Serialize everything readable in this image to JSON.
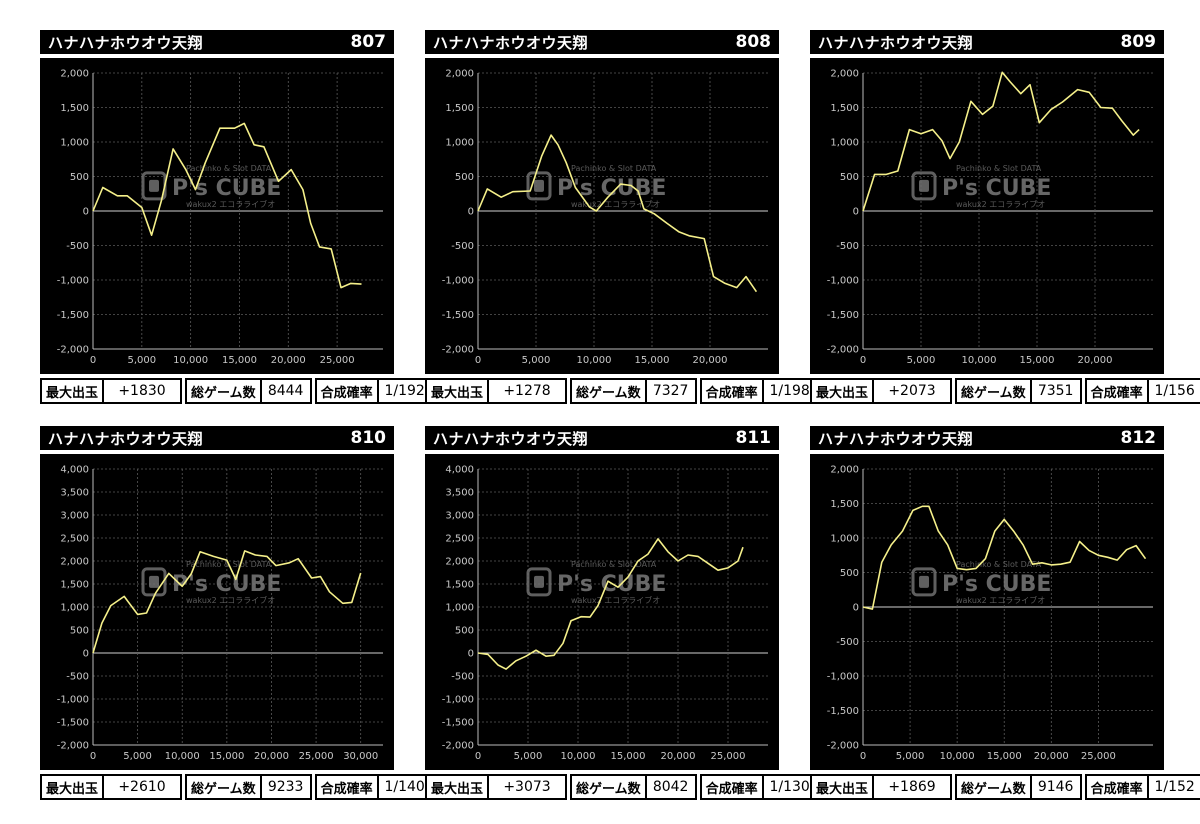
{
  "colors": {
    "line": "#f5f08a",
    "grid": "#5a5a5a",
    "background": "#000000"
  },
  "watermark": {
    "main": "P's CUBE",
    "top": "Pachinko & Slot DATA",
    "bottom": "wakux2 エコラライブオ"
  },
  "panels": [
    {
      "title": "ハナハナホウオウ天翔",
      "machine_no": "807",
      "stats": [
        {
          "label": "最大出玉",
          "value": "+1830"
        },
        {
          "label": "総ゲーム数",
          "value": "8444"
        },
        {
          "label": "合成確率",
          "value": "1/192"
        }
      ],
      "chart_data": {
        "type": "line",
        "ylim": [
          -2000,
          2000
        ],
        "yticks": [
          -2000,
          -1500,
          -1000,
          -500,
          0,
          500,
          1000,
          1500,
          2000
        ],
        "ytick_labels": [
          "-2,000",
          "-1,500",
          "-1,000",
          "-500",
          "0",
          "500",
          "1,000",
          "1,500",
          "2,000"
        ],
        "xlim": [
          0,
          29700
        ],
        "xticks": [
          0,
          5000,
          10000,
          15000,
          20000,
          25000
        ],
        "xtick_labels": [
          "0",
          "5,000",
          "10,000",
          "15,000",
          "20,000",
          "25,000"
        ],
        "series": [
          {
            "x": [
              0,
              1000,
              2500,
              3500,
              5000,
              6000,
              7000,
              8200,
              9500,
              10500,
              11500,
              13000,
              14500,
              15500,
              16500,
              17500,
              19000,
              20300,
              21500,
              22300,
              23200,
              24400,
              25400,
              26400,
              27500
            ],
            "y": [
              0,
              340,
              220,
              220,
              50,
              -350,
              150,
              900,
              600,
              310,
              700,
              1200,
              1200,
              1270,
              960,
              930,
              430,
              600,
              310,
              -180,
              -520,
              -550,
              -1110,
              -1050,
              -1060
            ]
          }
        ]
      }
    },
    {
      "title": "ハナハナホウオウ天翔",
      "machine_no": "808",
      "stats": [
        {
          "label": "最大出玉",
          "value": "+1278"
        },
        {
          "label": "総ゲーム数",
          "value": "7327"
        },
        {
          "label": "合成確率",
          "value": "1/198"
        }
      ],
      "chart_data": {
        "type": "line",
        "ylim": [
          -2000,
          2000
        ],
        "yticks": [
          -2000,
          -1500,
          -1000,
          -500,
          0,
          500,
          1000,
          1500,
          2000
        ],
        "ytick_labels": [
          "-2,000",
          "-1,500",
          "-1,000",
          "-500",
          "0",
          "500",
          "1,000",
          "1,500",
          "2,000"
        ],
        "xlim": [
          0,
          25000
        ],
        "xticks": [
          0,
          5000,
          10000,
          15000,
          20000
        ],
        "xtick_labels": [
          "0",
          "5,000",
          "10,000",
          "15,000",
          "20,000"
        ],
        "series": [
          {
            "x": [
              0,
              800,
              2000,
              3000,
              4500,
              5500,
              6300,
              6900,
              7600,
              8400,
              9600,
              10200,
              11200,
              12300,
              13200,
              13800,
              14300,
              15200,
              16300,
              17300,
              18200,
              19500,
              20300,
              21300,
              22300,
              23100,
              24000
            ],
            "y": [
              0,
              320,
              200,
              280,
              290,
              800,
              1100,
              960,
              700,
              340,
              60,
              0,
              200,
              390,
              370,
              290,
              30,
              -40,
              -180,
              -300,
              -360,
              -400,
              -950,
              -1050,
              -1110,
              -950,
              -1170
            ]
          }
        ]
      }
    },
    {
      "title": "ハナハナホウオウ天翔",
      "machine_no": "809",
      "stats": [
        {
          "label": "最大出玉",
          "value": "+2073"
        },
        {
          "label": "総ゲーム数",
          "value": "7351"
        },
        {
          "label": "合成確率",
          "value": "1/156"
        }
      ],
      "chart_data": {
        "type": "line",
        "ylim": [
          -2000,
          2000
        ],
        "yticks": [
          -2000,
          -1500,
          -1000,
          -500,
          0,
          500,
          1000,
          1500,
          2000
        ],
        "ytick_labels": [
          "-2,000",
          "-1,500",
          "-1,000",
          "-500",
          "0",
          "500",
          "1,000",
          "1,500",
          "2,000"
        ],
        "xlim": [
          0,
          25000
        ],
        "xticks": [
          0,
          5000,
          10000,
          15000,
          20000
        ],
        "xtick_labels": [
          "0",
          "5,000",
          "10,000",
          "15,000",
          "20,000"
        ],
        "series": [
          {
            "x": [
              0,
              1000,
              2000,
              3000,
              4000,
              5000,
              6000,
              6800,
              7500,
              8300,
              9300,
              10300,
              11200,
              12000,
              12700,
              13600,
              14400,
              15200,
              16200,
              17200,
              18500,
              19500,
              20500,
              21500,
              22300,
              23300,
              23800
            ],
            "y": [
              0,
              530,
              530,
              580,
              1180,
              1120,
              1180,
              1020,
              760,
              1000,
              1590,
              1400,
              1520,
              2010,
              1870,
              1700,
              1830,
              1280,
              1470,
              1580,
              1760,
              1720,
              1500,
              1490,
              1310,
              1100,
              1180
            ]
          }
        ]
      }
    },
    {
      "title": "ハナハナホウオウ天翔",
      "machine_no": "810",
      "stats": [
        {
          "label": "最大出玉",
          "value": "+2610"
        },
        {
          "label": "総ゲーム数",
          "value": "9233"
        },
        {
          "label": "合成確率",
          "value": "1/140"
        }
      ],
      "chart_data": {
        "type": "line",
        "ylim": [
          -2000,
          4000
        ],
        "yticks": [
          -2000,
          -1500,
          -1000,
          -500,
          0,
          500,
          1000,
          1500,
          2000,
          2500,
          3000,
          3500,
          4000
        ],
        "ytick_labels": [
          "-2,000",
          "-1,500",
          "-1,000",
          "-500",
          "0",
          "500",
          "1,000",
          "1,500",
          "2,000",
          "2,500",
          "3,000",
          "3,500",
          "4,000"
        ],
        "xlim": [
          0,
          32500
        ],
        "xticks": [
          0,
          5000,
          10000,
          15000,
          20000,
          25000,
          30000
        ],
        "xtick_labels": [
          "0",
          "5,000",
          "10,000",
          "15,000",
          "20,000",
          "25,000",
          "30,000"
        ],
        "series": [
          {
            "x": [
              0,
              1000,
              2000,
              3500,
              5000,
              6000,
              7000,
              8500,
              10000,
              11000,
              12000,
              13500,
              15000,
              16000,
              17000,
              18200,
              19500,
              20500,
              22000,
              23000,
              24500,
              25500,
              26500,
              28000,
              29000,
              30000
            ],
            "y": [
              0,
              650,
              1030,
              1230,
              840,
              870,
              1300,
              1730,
              1450,
              1720,
              2200,
              2100,
              2020,
              1600,
              2220,
              2130,
              2100,
              1900,
              1960,
              2050,
              1630,
              1660,
              1330,
              1080,
              1100,
              1740
            ]
          }
        ]
      }
    },
    {
      "title": "ハナハナホウオウ天翔",
      "machine_no": "811",
      "stats": [
        {
          "label": "最大出玉",
          "value": "+3073"
        },
        {
          "label": "総ゲーム数",
          "value": "8042"
        },
        {
          "label": "合成確率",
          "value": "1/130"
        }
      ],
      "chart_data": {
        "type": "line",
        "ylim": [
          -2000,
          4000
        ],
        "yticks": [
          -2000,
          -1500,
          -1000,
          -500,
          0,
          500,
          1000,
          1500,
          2000,
          2500,
          3000,
          3500,
          4000
        ],
        "ytick_labels": [
          "-2,000",
          "-1,500",
          "-1,000",
          "-500",
          "0",
          "500",
          "1,000",
          "1,500",
          "2,000",
          "2,500",
          "3,000",
          "3,500",
          "4,000"
        ],
        "xlim": [
          0,
          29000
        ],
        "xticks": [
          0,
          5000,
          10000,
          15000,
          20000,
          25000
        ],
        "xtick_labels": [
          "0",
          "5,000",
          "10,000",
          "15,000",
          "20,000",
          "25,000"
        ],
        "series": [
          {
            "x": [
              0,
              1000,
              2000,
              2800,
              3800,
              4800,
              5800,
              6800,
              7600,
              8500,
              9300,
              10300,
              11200,
              12000,
              13000,
              14000,
              15000,
              16000,
              17000,
              18000,
              19000,
              20000,
              21000,
              22000,
              23000,
              24000,
              25000,
              26000,
              26500
            ],
            "y": [
              0,
              -30,
              -260,
              -350,
              -170,
              -70,
              60,
              -70,
              -50,
              210,
              700,
              790,
              780,
              1030,
              1560,
              1430,
              1650,
              2000,
              2150,
              2480,
              2200,
              2000,
              2130,
              2100,
              1950,
              1800,
              1850,
              2000,
              2300
            ]
          }
        ]
      }
    },
    {
      "title": "ハナハナホウオウ天翔",
      "machine_no": "812",
      "stats": [
        {
          "label": "最大出玉",
          "value": "+1869"
        },
        {
          "label": "総ゲーム数",
          "value": "9146"
        },
        {
          "label": "合成確率",
          "value": "1/152"
        }
      ],
      "chart_data": {
        "type": "line",
        "ylim": [
          -2000,
          2000
        ],
        "yticks": [
          -2000,
          -1500,
          -1000,
          -500,
          0,
          500,
          1000,
          1500,
          2000
        ],
        "ytick_labels": [
          "-2,000",
          "-1,500",
          "-1,000",
          "-500",
          "0",
          "500",
          "1,000",
          "1,500",
          "2,000"
        ],
        "xlim": [
          0,
          30800
        ],
        "xticks": [
          0,
          5000,
          10000,
          15000,
          20000,
          25000
        ],
        "xtick_labels": [
          "0",
          "5,000",
          "10,000",
          "15,000",
          "20,000",
          "25,000"
        ],
        "series": [
          {
            "x": [
              0,
              1000,
              2000,
              3000,
              4200,
              5300,
              6300,
              7000,
              8000,
              9000,
              10000,
              11000,
              12000,
              13000,
              14000,
              15000,
              16000,
              17000,
              18000,
              19000,
              20000,
              21000,
              22000,
              23000,
              24000,
              25000,
              26000,
              27000,
              28000,
              29000,
              30000
            ],
            "y": [
              0,
              -30,
              650,
              900,
              1100,
              1400,
              1460,
              1460,
              1100,
              900,
              560,
              540,
              560,
              700,
              1100,
              1270,
              1100,
              900,
              620,
              640,
              610,
              620,
              650,
              950,
              820,
              750,
              720,
              680,
              830,
              890,
              700
            ]
          }
        ]
      }
    }
  ]
}
